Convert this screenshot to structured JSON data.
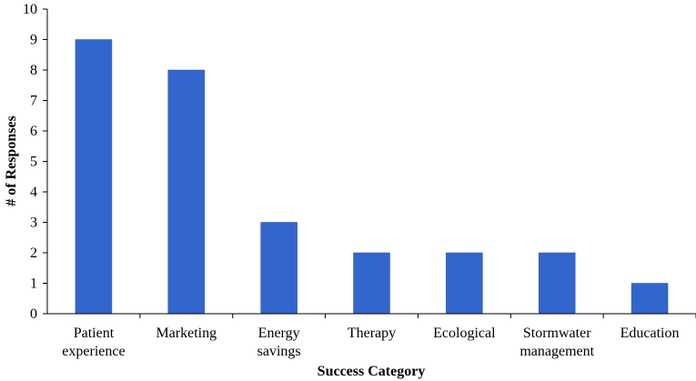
{
  "chart_data": {
    "type": "bar",
    "categories": [
      [
        "Patient",
        "experience"
      ],
      [
        "Marketing"
      ],
      [
        "Energy",
        "savings"
      ],
      [
        "Therapy"
      ],
      [
        "Ecological"
      ],
      [
        "Stormwater",
        "management"
      ],
      [
        "Education"
      ]
    ],
    "values": [
      9,
      8,
      3,
      2,
      2,
      2,
      1
    ],
    "xlabel": "Success Category",
    "ylabel": "# of Responses",
    "ylim": [
      0,
      10
    ],
    "yticks": [
      0,
      1,
      2,
      3,
      4,
      5,
      6,
      7,
      8,
      9,
      10
    ],
    "grid": false,
    "colors": {
      "bar": "#3366cc"
    }
  }
}
